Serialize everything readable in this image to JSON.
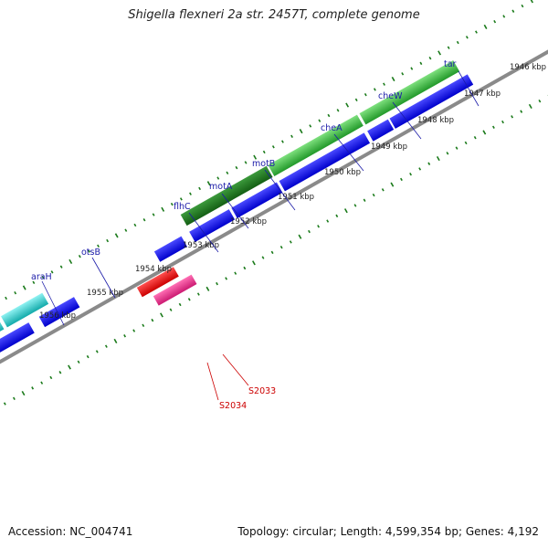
{
  "title": "Shigella flexneri 2a str. 2457T, complete genome",
  "accession": "Accession: NC_004741",
  "summary": "Topology: circular; Length: 4,599,354 bp; Genes: 4,192",
  "kbp_labels": [
    "1946 kbp",
    "1947 kbp",
    "1948 kbp",
    "1949 kbp",
    "1950 kbp",
    "1951 kbp",
    "1952 kbp",
    "1953 kbp",
    "1954 kbp",
    "1955 kbp",
    "1956 kbp"
  ],
  "gene_labels": [
    "tar",
    "cheW",
    "cheA",
    "motB",
    "motA",
    "flhC",
    "otsB",
    "araH"
  ],
  "rna_labels": [
    "S2033",
    "S2034"
  ],
  "colors": {
    "cds_blue": "#0000ee",
    "cluster_green": "#33aa33",
    "cluster_dark_green": "#1a7a1a",
    "cluster_cyan": "#22cccc",
    "rna_red": "#ee0000",
    "rna_pink": "#ee2288",
    "backbone": "#888888",
    "tick_green": "#1a7a1a"
  }
}
